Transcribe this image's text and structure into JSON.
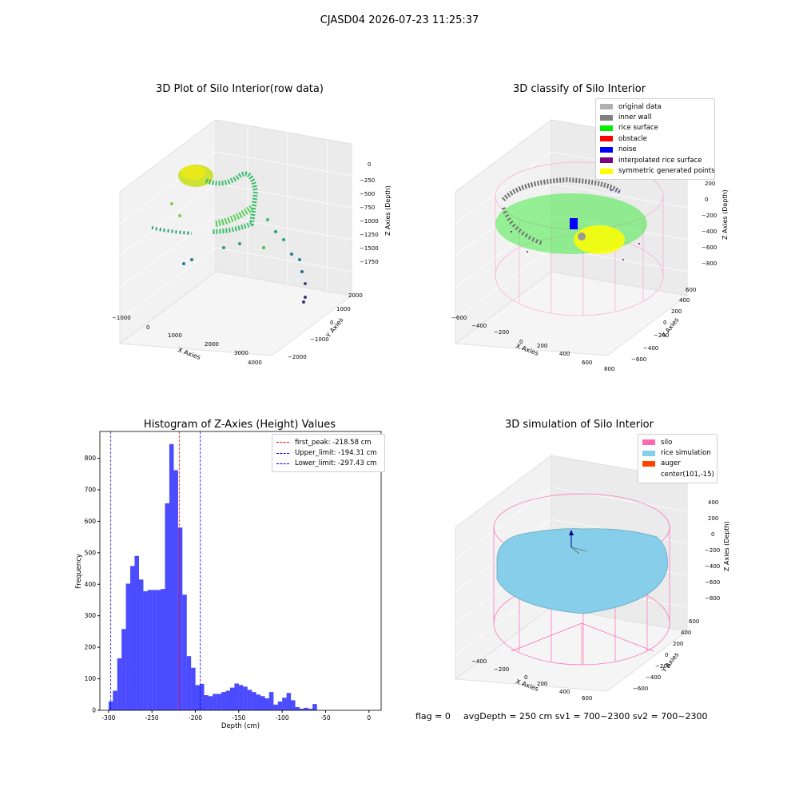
{
  "suptitle": "CJASD04 2026-07-23 11:25:37",
  "panels": {
    "raw": {
      "title": "3D Plot of Silo Interior(row data)",
      "xlabel": "X Axies",
      "ylabel": "Y Axies",
      "zlabel": "Z Axies (Depth)",
      "xticks": [
        "−1000",
        "0",
        "1000",
        "2000",
        "3000",
        "4000"
      ],
      "yticks": [
        "−2000",
        "−1000",
        "0",
        "1000",
        "2000"
      ],
      "zticks": [
        "0",
        "−250",
        "−500",
        "−750",
        "−1000",
        "−1250",
        "−1500",
        "−1750"
      ]
    },
    "classify": {
      "title": "3D classify of Silo Interior",
      "xlabel": "X Axies",
      "ylabel": "Y Axies",
      "zlabel": "Z Axies (Depth)",
      "xticks": [
        "−600",
        "−400",
        "−200",
        "0",
        "200",
        "400",
        "600",
        "800"
      ],
      "yticks": [
        "−600",
        "−400",
        "−200",
        "0",
        "200",
        "400",
        "600"
      ],
      "zticks": [
        "200",
        "0",
        "−200",
        "−400",
        "−600",
        "−800"
      ],
      "legend": [
        {
          "label": "original data",
          "color": "#b0b0b0"
        },
        {
          "label": "inner wall",
          "color": "#808080"
        },
        {
          "label": "rice surface",
          "color": "#00ee00"
        },
        {
          "label": "obstacle",
          "color": "#ff0000"
        },
        {
          "label": "noise",
          "color": "#0000ff"
        },
        {
          "label": "interpolated rice surface",
          "color": "#800080"
        },
        {
          "label": "symmetric generated points",
          "color": "#ffff00"
        }
      ]
    },
    "simulation": {
      "title": "3D simulation of Silo Interior",
      "xlabel": "X Axies",
      "ylabel": "Y Axies",
      "zlabel": "Z Axies (Depth)",
      "xticks": [
        "−400",
        "−200",
        "0",
        "200",
        "400",
        "600"
      ],
      "yticks": [
        "−600",
        "−400",
        "−200",
        "0",
        "200",
        "400",
        "600"
      ],
      "zticks": [
        "400",
        "200",
        "0",
        "−200",
        "−400",
        "−600",
        "−800"
      ],
      "legend": [
        {
          "label": "silo",
          "color": "#ff69b4"
        },
        {
          "label": "rice simulation",
          "color": "#87ceeb"
        },
        {
          "label": "auger",
          "color": "#ff4500"
        },
        {
          "label": "center(101,-15)",
          "color": ""
        }
      ]
    }
  },
  "footer": {
    "flag": "flag = 0",
    "avg": "avgDepth = 250 cm  sv1 = 700~2300  sv2 = 700~2300"
  },
  "chart_data": [
    {
      "type": "bar",
      "title": "Histogram of Z-Axies (Height) Values",
      "xlabel": "Depth (cm)",
      "ylabel": "Frequency",
      "xlim": [
        -310,
        14
      ],
      "ylim": [
        0,
        885
      ],
      "xticks": [
        -300,
        -250,
        -200,
        -150,
        -100,
        -50,
        0
      ],
      "yticks": [
        0,
        100,
        200,
        300,
        400,
        500,
        600,
        700,
        800
      ],
      "bin_width": 5.1,
      "bins": [
        {
          "x": -300,
          "y": 28
        },
        {
          "x": -295,
          "y": 62
        },
        {
          "x": -290,
          "y": 165
        },
        {
          "x": -285,
          "y": 258
        },
        {
          "x": -280,
          "y": 402
        },
        {
          "x": -275,
          "y": 458
        },
        {
          "x": -270,
          "y": 490
        },
        {
          "x": -265,
          "y": 415
        },
        {
          "x": -260,
          "y": 378
        },
        {
          "x": -255,
          "y": 382
        },
        {
          "x": -250,
          "y": 382
        },
        {
          "x": -245,
          "y": 382
        },
        {
          "x": -240,
          "y": 385
        },
        {
          "x": -235,
          "y": 657
        },
        {
          "x": -230,
          "y": 845
        },
        {
          "x": -225,
          "y": 762
        },
        {
          "x": -220,
          "y": 580
        },
        {
          "x": -215,
          "y": 367
        },
        {
          "x": -210,
          "y": 172
        },
        {
          "x": -205,
          "y": 135
        },
        {
          "x": -200,
          "y": 80
        },
        {
          "x": -195,
          "y": 84
        },
        {
          "x": -190,
          "y": 48
        },
        {
          "x": -185,
          "y": 45
        },
        {
          "x": -180,
          "y": 52
        },
        {
          "x": -175,
          "y": 52
        },
        {
          "x": -170,
          "y": 58
        },
        {
          "x": -165,
          "y": 62
        },
        {
          "x": -160,
          "y": 72
        },
        {
          "x": -155,
          "y": 85
        },
        {
          "x": -150,
          "y": 80
        },
        {
          "x": -145,
          "y": 75
        },
        {
          "x": -140,
          "y": 65
        },
        {
          "x": -135,
          "y": 58
        },
        {
          "x": -130,
          "y": 50
        },
        {
          "x": -125,
          "y": 45
        },
        {
          "x": -120,
          "y": 38
        },
        {
          "x": -115,
          "y": 58
        },
        {
          "x": -110,
          "y": 18
        },
        {
          "x": -105,
          "y": 28
        },
        {
          "x": -100,
          "y": 40
        },
        {
          "x": -95,
          "y": 55
        },
        {
          "x": -90,
          "y": 32
        },
        {
          "x": -85,
          "y": 10
        },
        {
          "x": -80,
          "y": 5
        },
        {
          "x": -75,
          "y": 8
        },
        {
          "x": -70,
          "y": 5
        },
        {
          "x": -65,
          "y": 20
        }
      ],
      "bar_color": "#4b4bff",
      "vlines": [
        {
          "x": -218.58,
          "label": "first_peak: -218.58 cm",
          "color": "#ff0000"
        },
        {
          "x": -194.31,
          "label": "Upper_limit: -194.31 cm",
          "color": "#0000ff"
        },
        {
          "x": -297.43,
          "label": "Lower_limit: -297.43 cm",
          "color": "#0000ff"
        }
      ],
      "legend_position": "top-right",
      "grid": false
    }
  ]
}
